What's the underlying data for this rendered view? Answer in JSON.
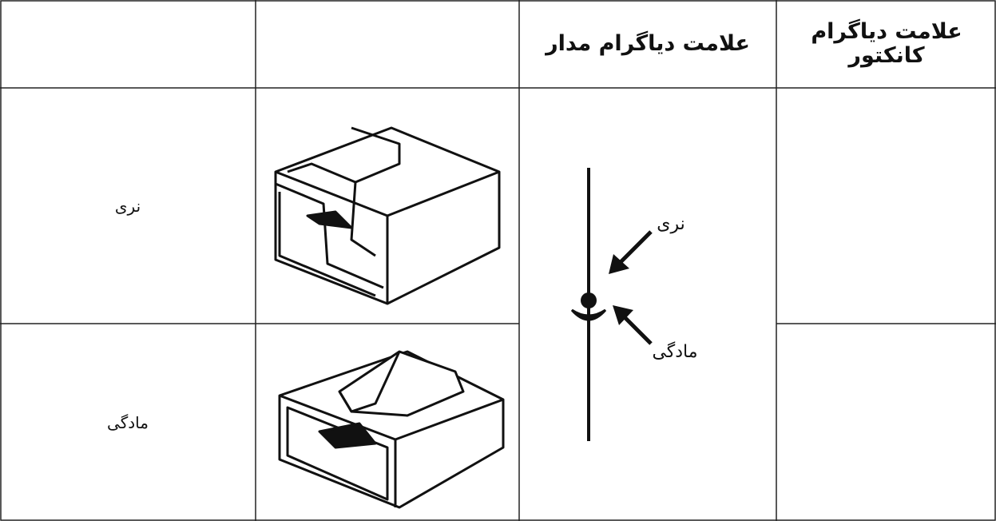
{
  "header": {
    "circuit_symbol": "علامت دیاگرام مدار",
    "connector_symbol": "علامت دیاگرام کانکتور"
  },
  "rows": [
    {
      "label": "نری"
    },
    {
      "label": "مادگی"
    }
  ],
  "diagram": {
    "male_label": "نری",
    "female_label": "مادگی"
  }
}
